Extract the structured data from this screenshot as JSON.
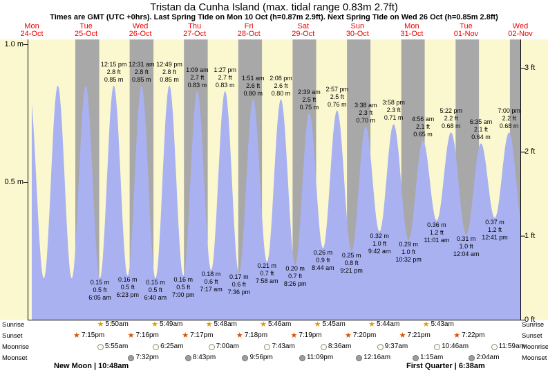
{
  "title": "Tristan da Cunha Island (max. tidal range 0.83m 2.7ft)",
  "subtitle": "Times are GMT (UTC +0hrs). Last Spring Tide on Mon 10 Oct (h=0.87m 2.9ft). Next Spring Tide on Wed 26 Oct (h=0.85m 2.8ft)",
  "footer": {
    "new_moon_label": "New Moon | 10:48am",
    "first_quarter_label": "First Quarter | 6:38am"
  },
  "colors": {
    "day_band": "#fbf8cf",
    "night_band": "#a8a8a8",
    "tide_fill": "#a9b1f1",
    "date_red": "#ee0000",
    "axis": "#000000",
    "sunrise_star": "#d99e00",
    "sunset_star": "#d94f00",
    "moonrise_fill": "#fdfdec",
    "moonrise_border": "#8a8a8a",
    "moonset_fill": "#9e9e9e",
    "moonset_border": "#6e6e6e"
  },
  "chart_data": {
    "type": "area",
    "title": "Tristan da Cunha Island tide curve",
    "ylabel_left_unit": "m",
    "ylabel_right_unit": "ft",
    "ylim_m": [
      0,
      1.02
    ],
    "time_span_hours": 216,
    "grid": false,
    "day_labels": [
      [
        "Mon",
        "24-Oct"
      ],
      [
        "Tue",
        "25-Oct"
      ],
      [
        "Wed",
        "26-Oct"
      ],
      [
        "Thu",
        "27-Oct"
      ],
      [
        "Fri",
        "28-Oct"
      ],
      [
        "Sat",
        "29-Oct"
      ],
      [
        "Sun",
        "30-Oct"
      ],
      [
        "Mon",
        "31-Oct"
      ],
      [
        "Tue",
        "01-Nov"
      ],
      [
        "Wed",
        "02-Nov"
      ]
    ],
    "left_ticks": [
      {
        "label": "1.0 m",
        "m": 1.0
      },
      {
        "label": "0.5 m",
        "m": 0.5
      }
    ],
    "right_ticks": [
      {
        "label": "3 ft",
        "m": 0.9144
      },
      {
        "label": "2 ft",
        "m": 0.6096
      },
      {
        "label": "1 ft",
        "m": 0.3048
      },
      {
        "label": "0 ft",
        "m": 0
      }
    ],
    "night_bands_t": [
      [
        19.25,
        29.833
      ],
      [
        43.267,
        53.817
      ],
      [
        67.283,
        77.8
      ],
      [
        91.3,
        101.767
      ],
      [
        115.317,
        125.75
      ],
      [
        139.333,
        149.733
      ],
      [
        163.35,
        173.717
      ],
      [
        187.367,
        197.7
      ],
      [
        211.38,
        216
      ]
    ],
    "tide_events": [
      {
        "t": -1.2,
        "h": 0.84,
        "type": "high",
        "lines": null
      },
      {
        "t": 5.33,
        "h": 0.15,
        "type": "low",
        "lines": null
      },
      {
        "t": 11.5,
        "h": 0.85,
        "type": "high",
        "lines": null
      },
      {
        "t": 17.67,
        "h": 0.15,
        "type": "low",
        "lines": null
      },
      {
        "t": 23.85,
        "h": 0.85,
        "type": "high",
        "lines": null
      },
      {
        "t": 30.083,
        "h": 0.15,
        "type": "low",
        "lines": [
          "0.15 m",
          "0.5 ft",
          "6:05 am"
        ]
      },
      {
        "t": 36.25,
        "h": 0.85,
        "type": "high",
        "lines": [
          "12:15 pm",
          "2.8 ft",
          "0.85 m"
        ]
      },
      {
        "t": 42.383,
        "h": 0.16,
        "type": "low",
        "lines": [
          "0.16 m",
          "0.5 ft",
          "6:23 pm"
        ]
      },
      {
        "t": 48.517,
        "h": 0.85,
        "type": "high",
        "lines": [
          "12:31 am",
          "2.8 ft",
          "0.85 m"
        ]
      },
      {
        "t": 54.667,
        "h": 0.15,
        "type": "low",
        "lines": [
          "0.15 m",
          "0.5 ft",
          "6:40 am"
        ]
      },
      {
        "t": 60.817,
        "h": 0.85,
        "type": "high",
        "lines": [
          "12:49 pm",
          "2.8 ft",
          "0.85 m"
        ]
      },
      {
        "t": 67.0,
        "h": 0.16,
        "type": "low",
        "lines": [
          "0.16 m",
          "0.5 ft",
          "7:00 pm"
        ]
      },
      {
        "t": 73.15,
        "h": 0.83,
        "type": "high",
        "lines": [
          "1:09 am",
          "2.7 ft",
          "0.83 m"
        ]
      },
      {
        "t": 79.283,
        "h": 0.18,
        "type": "low",
        "lines": [
          "0.18 m",
          "0.6 ft",
          "7:17 am"
        ]
      },
      {
        "t": 85.45,
        "h": 0.83,
        "type": "high",
        "lines": [
          "1:27 pm",
          "2.7 ft",
          "0.83 m"
        ]
      },
      {
        "t": 91.6,
        "h": 0.17,
        "type": "low",
        "lines": [
          "0.17 m",
          "0.6 ft",
          "7:36 pm"
        ]
      },
      {
        "t": 97.85,
        "h": 0.8,
        "type": "high",
        "lines": [
          "1:51 am",
          "2.6 ft",
          "0.80 m"
        ]
      },
      {
        "t": 103.967,
        "h": 0.21,
        "type": "low",
        "lines": [
          "0.21 m",
          "0.7 ft",
          "7:58 am"
        ]
      },
      {
        "t": 110.133,
        "h": 0.8,
        "type": "high",
        "lines": [
          "2:08 pm",
          "2.6 ft",
          "0.80 m"
        ]
      },
      {
        "t": 116.433,
        "h": 0.2,
        "type": "low",
        "lines": [
          "0.20 m",
          "0.7 ft",
          "8:26 pm"
        ]
      },
      {
        "t": 122.65,
        "h": 0.75,
        "type": "high",
        "lines": [
          "2:39 am",
          "2.5 ft",
          "0.75 m"
        ]
      },
      {
        "t": 128.733,
        "h": 0.26,
        "type": "low",
        "lines": [
          "0.26 m",
          "0.9 ft",
          "8:44 am"
        ]
      },
      {
        "t": 134.95,
        "h": 0.76,
        "type": "high",
        "lines": [
          "2:57 pm",
          "2.5 ft",
          "0.76 m"
        ]
      },
      {
        "t": 141.35,
        "h": 0.25,
        "type": "low",
        "lines": [
          "0.25 m",
          "0.8 ft",
          "9:21 pm"
        ]
      },
      {
        "t": 147.633,
        "h": 0.7,
        "type": "high",
        "lines": [
          "3:38 am",
          "2.3 ft",
          "0.70 m"
        ]
      },
      {
        "t": 153.7,
        "h": 0.32,
        "type": "low",
        "lines": [
          "0.32 m",
          "1.0 ft",
          "9:42 am"
        ]
      },
      {
        "t": 159.967,
        "h": 0.71,
        "type": "high",
        "lines": [
          "3:58 pm",
          "2.3 ft",
          "0.71 m"
        ]
      },
      {
        "t": 166.533,
        "h": 0.29,
        "type": "low",
        "lines": [
          "0.29 m",
          "1.0 ft",
          "10:32 pm"
        ]
      },
      {
        "t": 172.933,
        "h": 0.65,
        "type": "high",
        "lines": [
          "4:56 am",
          "2.1 ft",
          "0.65 m"
        ]
      },
      {
        "t": 179.017,
        "h": 0.36,
        "type": "low",
        "lines": [
          "0.36 m",
          "1.2 ft",
          "11:01 am"
        ]
      },
      {
        "t": 185.367,
        "h": 0.68,
        "type": "high",
        "lines": [
          "5:22 pm",
          "2.2 ft",
          "0.68 m"
        ]
      },
      {
        "t": 192.067,
        "h": 0.31,
        "type": "low",
        "lines": [
          "0.31 m",
          "1.0 ft",
          "12:04 am"
        ]
      },
      {
        "t": 198.583,
        "h": 0.64,
        "type": "high",
        "lines": [
          "6:35 am",
          "2.1 ft",
          "0.64 m"
        ]
      },
      {
        "t": 204.683,
        "h": 0.37,
        "type": "low",
        "lines": [
          "0.37 m",
          "1.2 ft",
          "12:41 pm"
        ]
      },
      {
        "t": 211.0,
        "h": 0.68,
        "type": "high",
        "lines": [
          "7:00 pm",
          "2.2 ft",
          "0.68 m"
        ]
      },
      {
        "t": 217.3,
        "h": 0.33,
        "type": "low",
        "lines": null
      }
    ],
    "sun_moon_rows": [
      {
        "key": "sunrise",
        "label": "Sunrise",
        "icon": "sunrise-star-icon",
        "events": [
          {
            "t": 29.833,
            "time": "5:50am"
          },
          {
            "t": 53.817,
            "time": "5:49am"
          },
          {
            "t": 77.8,
            "time": "5:48am"
          },
          {
            "t": 101.767,
            "time": "5:46am"
          },
          {
            "t": 125.75,
            "time": "5:45am"
          },
          {
            "t": 149.733,
            "time": "5:44am"
          },
          {
            "t": 173.717,
            "time": "5:43am"
          }
        ]
      },
      {
        "key": "sunset",
        "label": "Sunset",
        "icon": "sunset-star-icon",
        "events": [
          {
            "t": 19.25,
            "time": "7:15pm"
          },
          {
            "t": 43.267,
            "time": "7:16pm"
          },
          {
            "t": 67.283,
            "time": "7:17pm"
          },
          {
            "t": 91.3,
            "time": "7:18pm"
          },
          {
            "t": 115.317,
            "time": "7:19pm"
          },
          {
            "t": 139.333,
            "time": "7:20pm"
          },
          {
            "t": 163.35,
            "time": "7:21pm"
          },
          {
            "t": 187.367,
            "time": "7:22pm"
          }
        ]
      },
      {
        "key": "moonrise",
        "label": "Moonrise",
        "icon": "moonrise-icon",
        "events": [
          {
            "t": 29.917,
            "time": "5:55am"
          },
          {
            "t": 54.417,
            "time": "6:25am"
          },
          {
            "t": 79.0,
            "time": "7:00am"
          },
          {
            "t": 103.717,
            "time": "7:43am"
          },
          {
            "t": 128.6,
            "time": "8:36am"
          },
          {
            "t": 153.617,
            "time": "9:37am"
          },
          {
            "t": 178.767,
            "time": "10:46am"
          },
          {
            "t": 203.983,
            "time": "11:59am"
          }
        ]
      },
      {
        "key": "moonset",
        "label": "Moonset",
        "icon": "moonset-icon",
        "events": [
          {
            "t": 43.533,
            "time": "7:32pm"
          },
          {
            "t": 68.717,
            "time": "8:43pm"
          },
          {
            "t": 93.933,
            "time": "9:56pm"
          },
          {
            "t": 119.15,
            "time": "11:09pm"
          },
          {
            "t": 144.267,
            "time": "12:16am"
          },
          {
            "t": 169.25,
            "time": "1:15am"
          },
          {
            "t": 194.067,
            "time": "2:04am"
          }
        ]
      }
    ]
  }
}
